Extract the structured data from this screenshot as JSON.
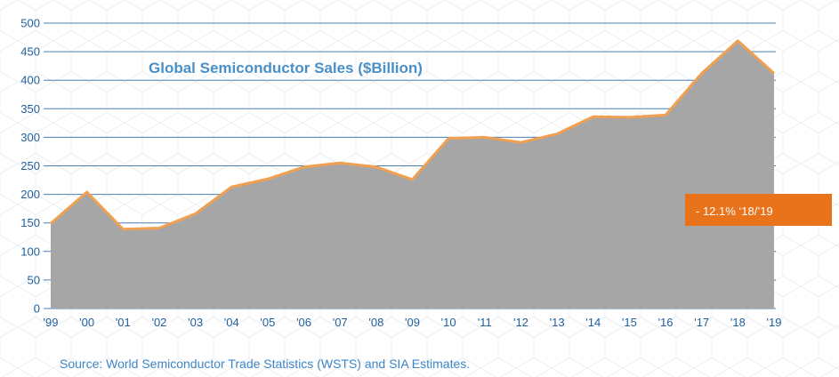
{
  "chart_data": {
    "type": "area",
    "title": "Global Semiconductor Sales ($Billion)",
    "categories": [
      "'99",
      "'00",
      "'01",
      "'02",
      "'03",
      "'04",
      "'05",
      "'06",
      "'07",
      "'08",
      "'09",
      "'10",
      "'11",
      "'12",
      "'13",
      "'14",
      "'15",
      "'16",
      "'17",
      "'18",
      "'19"
    ],
    "values": [
      149,
      204,
      139,
      141,
      166,
      213,
      227,
      248,
      255,
      248,
      226,
      298,
      300,
      291,
      306,
      336,
      335,
      339,
      412,
      469,
      412
    ],
    "ylim": [
      0,
      500
    ],
    "yticks": [
      0,
      50,
      100,
      150,
      200,
      250,
      300,
      350,
      400,
      450,
      500
    ],
    "grid": true,
    "annotation": "- 12.1% ‘18/’19",
    "colors": {
      "fill": "#a6a6a6",
      "line": "#f0a050",
      "callout": "#e8731a",
      "grid": "#4a7fb5",
      "tick": "#1f5f9e"
    }
  },
  "source_note": "Source: World Semiconductor Trade Statistics (WSTS) and SIA Estimates."
}
